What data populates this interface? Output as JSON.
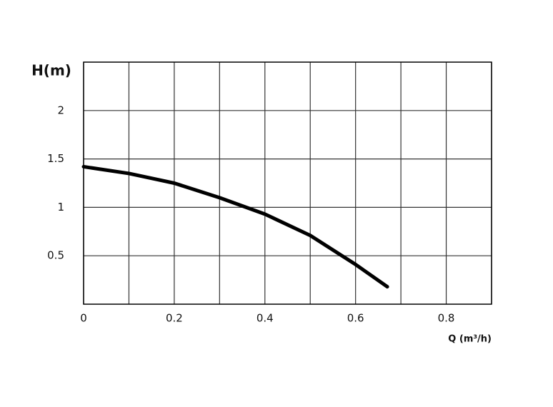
{
  "chart_data": {
    "type": "line",
    "y_label": "H(m)",
    "x_label": "Q (m³/h)",
    "x": [
      0,
      0.1,
      0.2,
      0.3,
      0.4,
      0.5,
      0.6,
      0.67
    ],
    "series": [
      {
        "color": "#000000",
        "values": [
          1.42,
          1.35,
          1.25,
          1.1,
          0.93,
          0.71,
          0.41,
          0.18
        ]
      }
    ],
    "xlim": [
      0,
      0.9
    ],
    "xticks": [
      0,
      0.2,
      0.4,
      0.6,
      0.8
    ],
    "x_minor_ticks": [
      0.1,
      0.3,
      0.5,
      0.7,
      0.9
    ],
    "ylim": [
      0,
      2.5
    ],
    "yticks": [
      0.5,
      1,
      1.5,
      2
    ],
    "grid": true
  }
}
